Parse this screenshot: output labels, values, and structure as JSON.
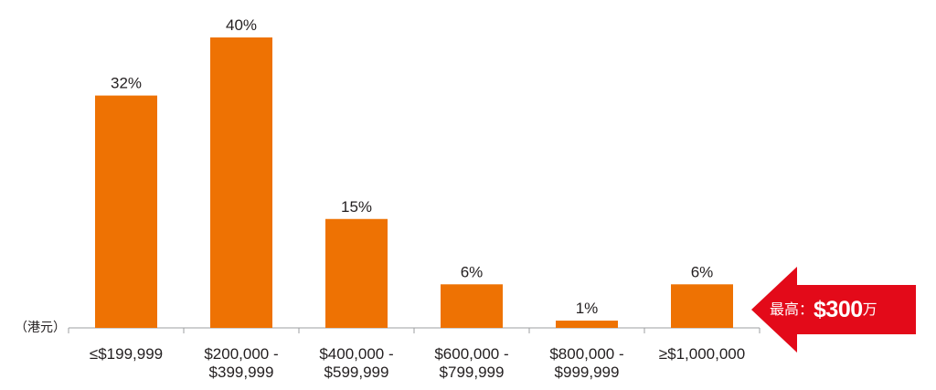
{
  "chart_data": {
    "type": "bar",
    "categories": [
      [
        "≤$199,999"
      ],
      [
        "$200,000 -",
        "$399,999"
      ],
      [
        "$400,000 -",
        "$599,999"
      ],
      [
        "$600,000 -",
        "$799,999"
      ],
      [
        "$800,000 -",
        "$999,999"
      ],
      [
        "≥$1,000,000"
      ]
    ],
    "values": [
      32,
      40,
      15,
      6,
      1,
      6
    ],
    "value_labels": [
      "32%",
      "40%",
      "15%",
      "6%",
      "1%",
      "6%"
    ],
    "unit_label": "（港元）",
    "ylim": [
      0,
      40
    ],
    "bar_color": "#ee7203",
    "axis_color": "#9d9fa2",
    "grid": false,
    "legend": "none"
  },
  "callout": {
    "prefix": "最高：",
    "value": "$300",
    "suffix": "万",
    "color": "#e30a19",
    "icon": "left-arrow-icon"
  }
}
